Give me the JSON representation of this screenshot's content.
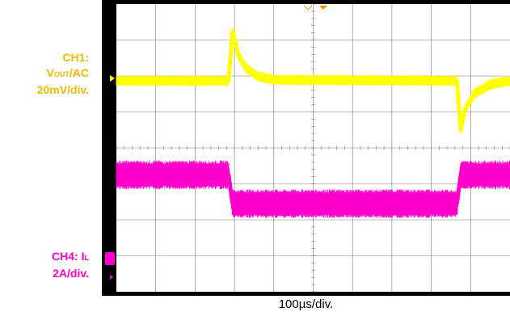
{
  "colors": {
    "ch1": "#ffff00",
    "ch4": "#ff00cc",
    "ch1_label": "#f5b800",
    "ch4_label": "#ff00cc",
    "screen_bg": "#000000",
    "grid": "#7a7a7a",
    "trigger_marker": "#ff8c00"
  },
  "labels": {
    "ch1_line1": "CH1:",
    "ch1_v": "V",
    "ch1_sub": "OUT",
    "ch1_ac": "/AC",
    "ch1_scale": "20mV/div.",
    "ch4_line1_prefix": "CH4: I",
    "ch4_sub": "L",
    "ch4_scale": "2A/div.",
    "time_scale": "100µs/div."
  },
  "chart_data": {
    "type": "line",
    "title": "",
    "xlabel": "100µs/div.",
    "x_divisions": 10,
    "y_divisions": 8,
    "grid": true,
    "series": [
      {
        "name": "CH1: VOUT/AC",
        "scale": "20mV/div.",
        "points_div": [
          [
            0,
            0
          ],
          [
            2.85,
            0
          ],
          [
            2.95,
            1.4
          ],
          [
            3.1,
            0.7
          ],
          [
            3.3,
            0.35
          ],
          [
            3.6,
            0.12
          ],
          [
            4.0,
            0.03
          ],
          [
            8.65,
            0
          ],
          [
            8.75,
            -1.4
          ],
          [
            8.85,
            -0.8
          ],
          [
            9.1,
            -0.35
          ],
          [
            9.5,
            -0.1
          ],
          [
            10,
            0
          ]
        ],
        "noise_band_div": 0.3
      },
      {
        "name": "CH4: IL",
        "scale": "2A/div.",
        "points_div": [
          [
            0,
            0.8
          ],
          [
            2.85,
            0.8
          ],
          [
            2.95,
            0
          ],
          [
            8.65,
            0
          ],
          [
            8.75,
            0.8
          ],
          [
            10,
            0.8
          ]
        ],
        "noise_band_div": 0.8
      }
    ]
  }
}
